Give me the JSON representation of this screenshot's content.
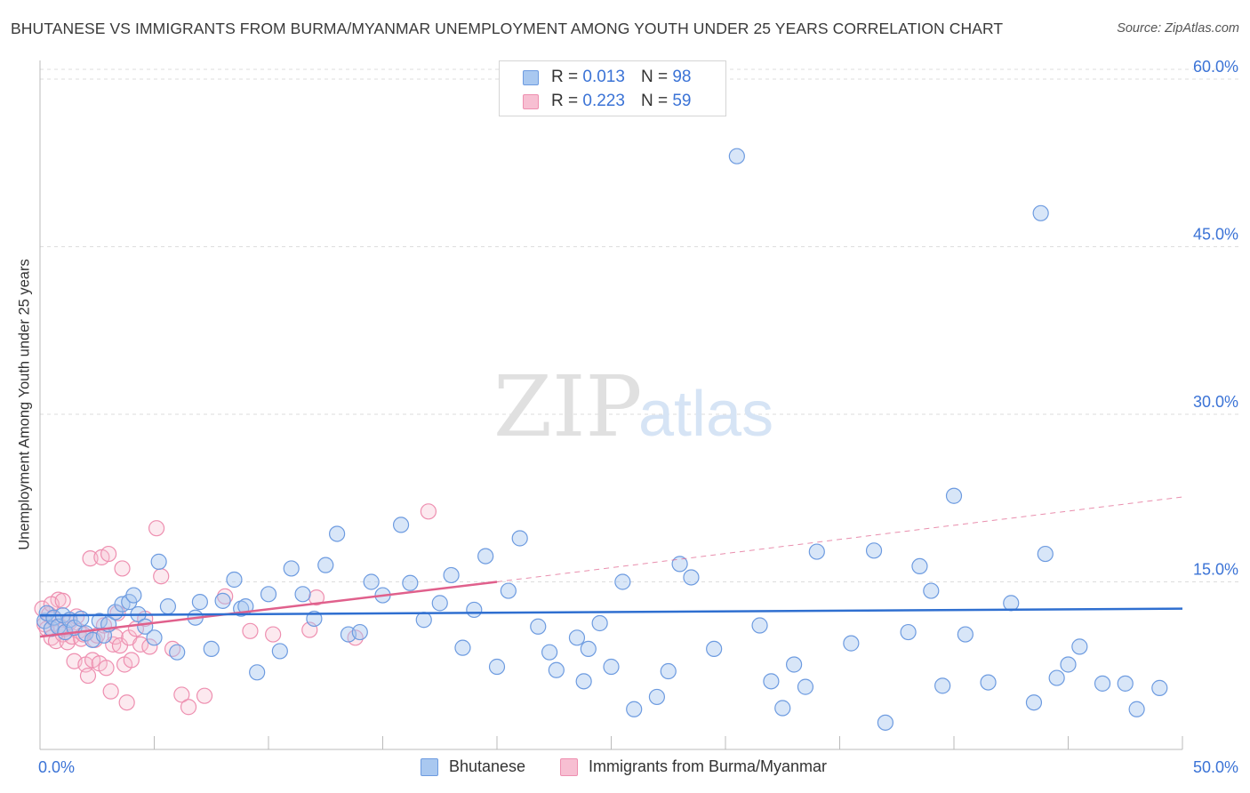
{
  "title": "BHUTANESE VS IMMIGRANTS FROM BURMA/MYANMAR UNEMPLOYMENT AMONG YOUTH UNDER 25 YEARS CORRELATION CHART",
  "source": "Source: ZipAtlas.com",
  "watermark": {
    "zip": "ZIP",
    "atlas": "atlas"
  },
  "legend": {
    "r_label": "R =",
    "n_label": "N =",
    "items": [
      {
        "name": "Bhutanese",
        "r": "0.013",
        "n": "98"
      },
      {
        "name": "Immigrants from Burma/Myanmar",
        "r": "0.223",
        "n": "59"
      }
    ]
  },
  "colors": {
    "blue_fill": "#a9c8f0",
    "blue_stroke": "#6d9be0",
    "blue_line": "#2f6fd0",
    "pink_fill": "#f7bfd2",
    "pink_stroke": "#ee8fb0",
    "pink_line": "#e0608c",
    "tick_text": "#3b73d6",
    "grid": "#dddddd"
  },
  "chart_data": {
    "type": "scatter",
    "title": "BHUTANESE VS IMMIGRANTS FROM BURMA/MYANMAR UNEMPLOYMENT AMONG YOUTH UNDER 25 YEARS CORRELATION CHART",
    "xlabel": "",
    "ylabel": "Unemployment Among Youth under 25 years",
    "xlim": [
      0,
      50
    ],
    "ylim": [
      0,
      63
    ],
    "x_tick_labels": [
      "0.0%",
      "50.0%"
    ],
    "y_ticks": [
      15,
      30,
      45,
      60
    ],
    "y_tick_labels": [
      "15.0%",
      "30.0%",
      "45.0%",
      "60.0%"
    ],
    "series": [
      {
        "name": "Bhutanese",
        "r": 0.013,
        "n": 98,
        "trend": {
          "x": [
            0,
            50
          ],
          "y": [
            12.0,
            12.6
          ],
          "dashed_extension": false
        },
        "points": [
          [
            0.2,
            11.5
          ],
          [
            0.3,
            12.2
          ],
          [
            0.5,
            10.8
          ],
          [
            0.6,
            11.8
          ],
          [
            0.8,
            11.0
          ],
          [
            1.0,
            12.0
          ],
          [
            1.1,
            10.5
          ],
          [
            1.3,
            11.6
          ],
          [
            1.5,
            10.9
          ],
          [
            1.8,
            11.7
          ],
          [
            2.0,
            10.4
          ],
          [
            2.3,
            9.8
          ],
          [
            2.6,
            11.5
          ],
          [
            2.8,
            10.2
          ],
          [
            3.0,
            11.2
          ],
          [
            3.3,
            12.3
          ],
          [
            3.6,
            13.0
          ],
          [
            3.9,
            13.2
          ],
          [
            4.1,
            13.8
          ],
          [
            4.3,
            12.1
          ],
          [
            4.6,
            11.0
          ],
          [
            5.0,
            10.0
          ],
          [
            5.2,
            16.8
          ],
          [
            5.6,
            12.8
          ],
          [
            6.0,
            8.7
          ],
          [
            6.8,
            11.8
          ],
          [
            7.0,
            13.2
          ],
          [
            7.5,
            9.0
          ],
          [
            8.0,
            13.3
          ],
          [
            8.5,
            15.2
          ],
          [
            8.8,
            12.6
          ],
          [
            9.0,
            12.8
          ],
          [
            9.5,
            6.9
          ],
          [
            10.0,
            13.9
          ],
          [
            10.5,
            8.8
          ],
          [
            11.0,
            16.2
          ],
          [
            11.5,
            13.9
          ],
          [
            12.0,
            11.7
          ],
          [
            12.5,
            16.5
          ],
          [
            13.0,
            19.3
          ],
          [
            13.5,
            10.3
          ],
          [
            14.0,
            10.5
          ],
          [
            14.5,
            15.0
          ],
          [
            15.0,
            13.8
          ],
          [
            15.8,
            20.1
          ],
          [
            16.2,
            14.9
          ],
          [
            16.8,
            11.6
          ],
          [
            17.5,
            13.1
          ],
          [
            18.0,
            15.6
          ],
          [
            18.5,
            9.1
          ],
          [
            19.0,
            12.5
          ],
          [
            19.5,
            17.3
          ],
          [
            20.0,
            7.4
          ],
          [
            20.5,
            14.2
          ],
          [
            21.0,
            18.9
          ],
          [
            21.8,
            11.0
          ],
          [
            22.3,
            8.7
          ],
          [
            22.6,
            7.1
          ],
          [
            23.5,
            10.0
          ],
          [
            23.8,
            6.1
          ],
          [
            24.0,
            9.0
          ],
          [
            25.0,
            7.4
          ],
          [
            25.5,
            15.0
          ],
          [
            24.5,
            11.3
          ],
          [
            26.0,
            3.6
          ],
          [
            27.0,
            4.7
          ],
          [
            27.5,
            7.0
          ],
          [
            28.0,
            16.6
          ],
          [
            28.5,
            15.4
          ],
          [
            29.5,
            9.0
          ],
          [
            31.5,
            11.1
          ],
          [
            32.0,
            6.1
          ],
          [
            32.5,
            3.7
          ],
          [
            33.0,
            7.6
          ],
          [
            33.5,
            5.6
          ],
          [
            34.0,
            17.7
          ],
          [
            35.5,
            9.5
          ],
          [
            36.5,
            17.8
          ],
          [
            37.0,
            2.4
          ],
          [
            38.0,
            10.5
          ],
          [
            38.5,
            16.4
          ],
          [
            39.0,
            14.2
          ],
          [
            39.5,
            5.7
          ],
          [
            40.0,
            22.7
          ],
          [
            40.5,
            10.3
          ],
          [
            41.5,
            6.0
          ],
          [
            42.5,
            13.1
          ],
          [
            43.5,
            4.2
          ],
          [
            44.0,
            17.5
          ],
          [
            44.5,
            6.4
          ],
          [
            45.0,
            7.6
          ],
          [
            45.5,
            9.2
          ],
          [
            46.5,
            5.9
          ],
          [
            47.5,
            5.9
          ],
          [
            48.0,
            3.6
          ],
          [
            49.0,
            5.5
          ],
          [
            30.5,
            53.1
          ],
          [
            43.8,
            48.0
          ]
        ]
      },
      {
        "name": "Immigrants from Burma/Myanmar",
        "r": 0.223,
        "n": 59,
        "trend": {
          "x": [
            0,
            20
          ],
          "y": [
            10.1,
            15.0
          ],
          "dashed_extension": true,
          "dashed_to": [
            50,
            22.6
          ]
        },
        "points": [
          [
            0.1,
            12.6
          ],
          [
            0.2,
            11.2
          ],
          [
            0.3,
            10.8
          ],
          [
            0.4,
            12.1
          ],
          [
            0.5,
            10.0
          ],
          [
            0.6,
            11.7
          ],
          [
            0.7,
            9.7
          ],
          [
            0.8,
            13.4
          ],
          [
            0.9,
            11.0
          ],
          [
            1.0,
            10.3
          ],
          [
            1.1,
            10.8
          ],
          [
            1.2,
            9.6
          ],
          [
            1.3,
            11.4
          ],
          [
            1.4,
            10.1
          ],
          [
            1.5,
            7.9
          ],
          [
            1.6,
            11.9
          ],
          [
            1.7,
            10.6
          ],
          [
            1.8,
            9.9
          ],
          [
            1.9,
            10.3
          ],
          [
            2.0,
            7.6
          ],
          [
            2.1,
            6.6
          ],
          [
            2.2,
            17.1
          ],
          [
            2.3,
            8.0
          ],
          [
            2.4,
            9.8
          ],
          [
            2.5,
            10.2
          ],
          [
            2.6,
            7.7
          ],
          [
            2.7,
            17.2
          ],
          [
            2.8,
            11.1
          ],
          [
            2.9,
            7.3
          ],
          [
            3.0,
            17.5
          ],
          [
            3.1,
            5.2
          ],
          [
            3.2,
            9.4
          ],
          [
            3.3,
            10.1
          ],
          [
            3.4,
            12.2
          ],
          [
            3.5,
            9.3
          ],
          [
            3.6,
            16.2
          ],
          [
            3.7,
            7.6
          ],
          [
            3.8,
            4.2
          ],
          [
            3.9,
            10.0
          ],
          [
            4.0,
            8.0
          ],
          [
            4.2,
            10.8
          ],
          [
            4.4,
            9.4
          ],
          [
            4.6,
            11.7
          ],
          [
            4.8,
            9.2
          ],
          [
            5.1,
            19.8
          ],
          [
            5.3,
            15.5
          ],
          [
            5.8,
            9.0
          ],
          [
            6.2,
            4.9
          ],
          [
            6.5,
            3.8
          ],
          [
            7.2,
            4.8
          ],
          [
            8.1,
            13.7
          ],
          [
            9.2,
            10.6
          ],
          [
            10.2,
            10.3
          ],
          [
            11.8,
            10.7
          ],
          [
            12.1,
            13.6
          ],
          [
            13.8,
            10.0
          ],
          [
            17.0,
            21.3
          ],
          [
            0.5,
            13.0
          ],
          [
            1.0,
            13.3
          ]
        ]
      }
    ]
  }
}
